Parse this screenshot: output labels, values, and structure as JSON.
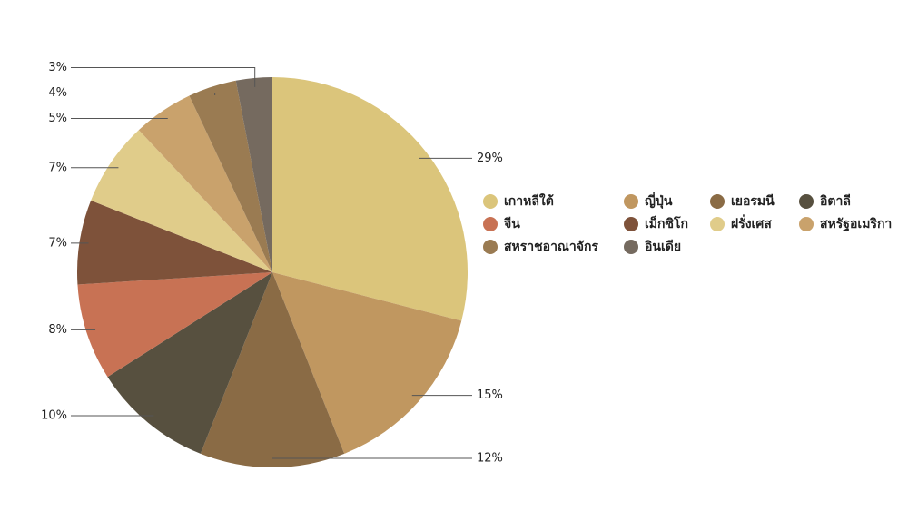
{
  "chart_data": {
    "type": "pie",
    "categories": [
      "เกาหลีใต้",
      "ญี่ปุ่น",
      "เยอรมนี",
      "อิตาลี",
      "จีน",
      "เม็กซิโก",
      "ฝรั่งเศส",
      "สหรัฐอเมริกา",
      "สหราชอาณาจักร",
      "อินเดีย"
    ],
    "values": [
      29,
      15,
      12,
      10,
      8,
      7,
      7,
      5,
      4,
      3
    ],
    "value_labels": [
      "29%",
      "15%",
      "12%",
      "10%",
      "8%",
      "7%",
      "7%",
      "5%",
      "4%",
      "3%"
    ],
    "colors": [
      "#dbc57b",
      "#c09760",
      "#8a6b45",
      "#57503f",
      "#c87254",
      "#7e523a",
      "#e0cc8a",
      "#c9a26c",
      "#9a7b52",
      "#756a5f"
    ]
  }
}
